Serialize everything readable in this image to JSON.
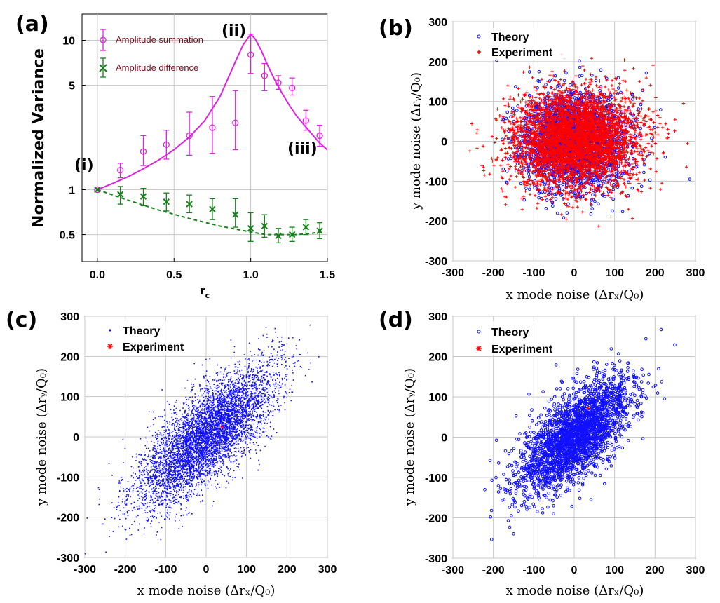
{
  "figure": {
    "panels": [
      "(a)",
      "(b)",
      "(c)",
      "(d)"
    ]
  },
  "colors": {
    "summation": "#e020e0",
    "difference": "#16801a",
    "theory": "#1010ff",
    "experiment": "#ff0000",
    "grid": "#c8c8c8"
  },
  "chart_data": [
    {
      "panel": "(a)",
      "type": "line",
      "xlabel_main": "r",
      "xlabel_sub": "c",
      "ylabel": "Normalized Variance",
      "yscale": "log",
      "xlim": [
        -0.1,
        1.5
      ],
      "ylim": [
        0.33,
        15
      ],
      "xticks": [
        "0.0",
        "0.5",
        "1.0",
        "1.5"
      ],
      "yticks": [
        "0.5",
        "1",
        "5",
        "10"
      ],
      "grid": true,
      "legend_position": "top-left",
      "annotations": [
        "(i)",
        "(ii)",
        "(iii)"
      ],
      "series": [
        {
          "name": "Amplitude summation",
          "marker": "circle",
          "x": [
            0.0,
            0.15,
            0.3,
            0.45,
            0.6,
            0.75,
            0.9,
            1.0,
            1.09,
            1.18,
            1.27,
            1.36,
            1.45
          ],
          "y": [
            1.0,
            1.35,
            1.8,
            2.0,
            2.3,
            2.6,
            2.8,
            8.0,
            5.8,
            5.2,
            4.8,
            2.9,
            2.3
          ],
          "err_low": [
            1.0,
            1.2,
            1.45,
            1.6,
            1.7,
            1.75,
            1.85,
            6.0,
            4.6,
            4.7,
            4.3,
            2.5,
            1.95
          ],
          "err_high": [
            1.0,
            1.5,
            2.3,
            2.5,
            3.3,
            4.2,
            4.6,
            11.0,
            7.0,
            5.8,
            5.6,
            3.4,
            2.7
          ]
        },
        {
          "name": "Amplitude difference",
          "marker": "x",
          "x": [
            0.0,
            0.15,
            0.3,
            0.45,
            0.6,
            0.75,
            0.9,
            1.0,
            1.09,
            1.18,
            1.27,
            1.36,
            1.45
          ],
          "y": [
            1.0,
            0.93,
            0.9,
            0.83,
            0.8,
            0.74,
            0.68,
            0.55,
            0.57,
            0.49,
            0.5,
            0.56,
            0.53
          ],
          "err_low": [
            1.0,
            0.8,
            0.78,
            0.72,
            0.7,
            0.63,
            0.56,
            0.45,
            0.48,
            0.44,
            0.45,
            0.5,
            0.47
          ],
          "err_high": [
            1.0,
            1.05,
            1.02,
            0.95,
            0.92,
            0.87,
            0.87,
            0.7,
            0.68,
            0.55,
            0.56,
            0.63,
            0.6
          ]
        }
      ],
      "fits": [
        {
          "series": "Amplitude summation",
          "style": "solid",
          "x": [
            0.0,
            0.1,
            0.2,
            0.3,
            0.4,
            0.5,
            0.6,
            0.7,
            0.8,
            0.85,
            0.9,
            0.95,
            1.0,
            1.03,
            1.07,
            1.1,
            1.15,
            1.2,
            1.25,
            1.3,
            1.35,
            1.4,
            1.45,
            1.5
          ],
          "y": [
            1.0,
            1.1,
            1.22,
            1.38,
            1.58,
            1.85,
            2.25,
            2.9,
            4.2,
            5.5,
            7.2,
            9.3,
            11.0,
            10.2,
            8.5,
            7.2,
            5.6,
            4.5,
            3.7,
            3.1,
            2.7,
            2.35,
            2.05,
            1.85
          ]
        },
        {
          "series": "Amplitude difference",
          "style": "dashed",
          "x": [
            0.0,
            0.2,
            0.4,
            0.6,
            0.8,
            1.0,
            1.1,
            1.2,
            1.3,
            1.4,
            1.45
          ],
          "y": [
            1.0,
            0.85,
            0.73,
            0.64,
            0.57,
            0.52,
            0.5,
            0.5,
            0.5,
            0.51,
            0.52
          ]
        }
      ]
    },
    {
      "panel": "(b)",
      "type": "scatter",
      "xlabel": "x mode noise (Δrₓ/Q₀)",
      "ylabel": "y mode noise (Δrᵧ/Q₀)",
      "xlim": [
        -300,
        300
      ],
      "ylim": [
        -300,
        300
      ],
      "ticks": [
        "-300",
        "-200",
        "-100",
        "0",
        "100",
        "200",
        "300"
      ],
      "grid": true,
      "legend_position": "top-left",
      "series": [
        {
          "name": "Theory",
          "marker": "circle",
          "center": [
            0,
            0
          ],
          "sd_major": 62,
          "sd_minor": 60,
          "angle_deg": 0
        },
        {
          "name": "Experiment",
          "marker": "plus",
          "center": [
            5,
            5
          ],
          "sd_major": 78,
          "sd_minor": 62,
          "angle_deg": 5
        }
      ]
    },
    {
      "panel": "(c)",
      "type": "scatter",
      "xlabel": "x mode noise (Δrₓ/Q₀)",
      "ylabel": "y mode noise (Δrᵧ/Q₀)",
      "xlim": [
        -300,
        300
      ],
      "ylim": [
        -300,
        300
      ],
      "ticks": [
        "-300",
        "-200",
        "-100",
        "0",
        "100",
        "200",
        "300"
      ],
      "grid": true,
      "legend_position": "top-left",
      "series": [
        {
          "name": "Theory",
          "marker": "dot",
          "center": [
            0,
            0
          ],
          "sd_major": 112,
          "sd_minor": 42,
          "angle_deg": 45
        },
        {
          "name": "Experiment",
          "marker": "star",
          "center": [
            0,
            0
          ],
          "sd_major": 105,
          "sd_minor": 30,
          "angle_deg": 45
        }
      ]
    },
    {
      "panel": "(d)",
      "type": "scatter",
      "xlabel": "x mode noise (Δrₓ/Q₀)",
      "ylabel": "y mode noise (Δrᵧ/Q₀)",
      "xlim": [
        -300,
        300
      ],
      "ylim": [
        -300,
        300
      ],
      "ticks": [
        "-300",
        "-200",
        "-100",
        "0",
        "100",
        "200",
        "300"
      ],
      "grid": true,
      "legend_position": "top-left",
      "series": [
        {
          "name": "Theory",
          "marker": "circle",
          "center": [
            0,
            0
          ],
          "sd_major": 88,
          "sd_minor": 40,
          "angle_deg": 45
        },
        {
          "name": "Experiment",
          "marker": "star",
          "center": [
            0,
            0
          ],
          "sd_major": 95,
          "sd_minor": 40,
          "angle_deg": 45
        }
      ]
    }
  ]
}
